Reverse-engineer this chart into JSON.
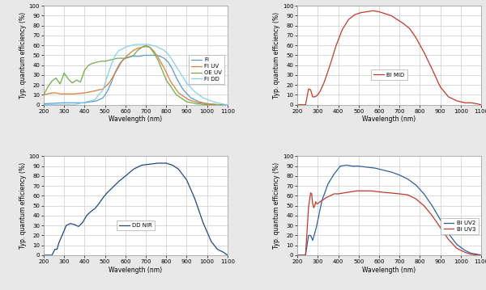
{
  "fig_bg_color": "#e8e8e8",
  "plot_bg_color": "#ffffff",
  "grid_color": "#cccccc",
  "xlim": [
    200,
    1100
  ],
  "ylim": [
    0,
    100
  ],
  "xticks": [
    200,
    300,
    400,
    500,
    600,
    700,
    800,
    900,
    1000,
    1100
  ],
  "yticks": [
    0,
    10,
    20,
    30,
    40,
    50,
    60,
    70,
    80,
    90,
    100
  ],
  "xlabel": "Wavelength (nm)",
  "ylabel": "Typ. quantum efficiency (%)",
  "FI": {
    "color": "#5b9bd5",
    "x": [
      200,
      300,
      350,
      400,
      430,
      460,
      490,
      510,
      530,
      550,
      570,
      590,
      610,
      630,
      650,
      670,
      690,
      710,
      730,
      750,
      770,
      790,
      810,
      830,
      850,
      880,
      920,
      960,
      1000,
      1050,
      1100
    ],
    "y": [
      1,
      2,
      2,
      2,
      3,
      4,
      7,
      13,
      22,
      33,
      41,
      46,
      48,
      49,
      49,
      49,
      50,
      50,
      50,
      50,
      49,
      47,
      43,
      36,
      27,
      16,
      7,
      3,
      1,
      0,
      0
    ]
  },
  "FI_UV": {
    "color": "#e07b39",
    "x": [
      200,
      220,
      240,
      260,
      280,
      300,
      350,
      400,
      450,
      490,
      520,
      550,
      580,
      610,
      640,
      660,
      680,
      700,
      720,
      740,
      760,
      790,
      820,
      860,
      910,
      960,
      1010,
      1060,
      1100
    ],
    "y": [
      10,
      11,
      12,
      12,
      11,
      11,
      11,
      12,
      14,
      16,
      22,
      32,
      43,
      50,
      55,
      57,
      58,
      59,
      58,
      54,
      48,
      37,
      24,
      12,
      5,
      2,
      1,
      0,
      0
    ]
  },
  "OE_UV": {
    "color": "#70ad47",
    "x": [
      200,
      220,
      240,
      260,
      280,
      300,
      320,
      340,
      360,
      380,
      400,
      420,
      440,
      460,
      480,
      500,
      520,
      540,
      560,
      580,
      600,
      620,
      640,
      660,
      680,
      700,
      720,
      740,
      760,
      800,
      850,
      900,
      950,
      1000,
      1050,
      1100
    ],
    "y": [
      10,
      18,
      24,
      27,
      21,
      32,
      26,
      22,
      25,
      23,
      35,
      40,
      42,
      43,
      44,
      44,
      45,
      46,
      47,
      47,
      47,
      48,
      50,
      55,
      58,
      60,
      58,
      52,
      45,
      25,
      10,
      3,
      1,
      0,
      0,
      0
    ]
  },
  "FI_DD": {
    "color": "#87CEEB",
    "x": [
      200,
      350,
      450,
      490,
      510,
      530,
      550,
      570,
      590,
      610,
      630,
      650,
      670,
      690,
      710,
      730,
      750,
      770,
      790,
      810,
      830,
      860,
      900,
      940,
      980,
      1030,
      1070,
      1100
    ],
    "y": [
      0,
      0,
      5,
      15,
      28,
      40,
      50,
      55,
      57,
      59,
      60,
      61,
      61,
      61,
      61,
      60,
      59,
      57,
      55,
      51,
      45,
      35,
      22,
      13,
      7,
      3,
      1,
      0
    ]
  },
  "BI_MID": {
    "color": "#c0392b",
    "x": [
      200,
      240,
      255,
      265,
      275,
      285,
      295,
      310,
      330,
      360,
      390,
      420,
      450,
      480,
      510,
      540,
      570,
      600,
      630,
      660,
      690,
      720,
      750,
      780,
      820,
      860,
      900,
      940,
      980,
      1020,
      1050,
      1080,
      1100
    ],
    "y": [
      0,
      0,
      16,
      15,
      8,
      8,
      9,
      13,
      22,
      40,
      60,
      76,
      86,
      91,
      93,
      94,
      95,
      94,
      92,
      90,
      86,
      82,
      77,
      68,
      53,
      36,
      18,
      8,
      4,
      2,
      2,
      1,
      0
    ]
  },
  "DD_NIR": {
    "color": "#1f497d",
    "x": [
      200,
      240,
      255,
      265,
      275,
      290,
      310,
      330,
      350,
      370,
      390,
      410,
      430,
      450,
      470,
      490,
      510,
      540,
      570,
      600,
      640,
      680,
      720,
      760,
      800,
      830,
      860,
      900,
      940,
      980,
      1020,
      1050,
      1080,
      1100
    ],
    "y": [
      0,
      0,
      6,
      6,
      13,
      20,
      30,
      32,
      31,
      29,
      33,
      40,
      44,
      47,
      52,
      58,
      63,
      69,
      75,
      80,
      87,
      91,
      92,
      93,
      93,
      91,
      87,
      76,
      57,
      33,
      14,
      6,
      3,
      0
    ]
  },
  "BI_UV2": {
    "color": "#2e5fa3",
    "x": [
      200,
      240,
      255,
      265,
      275,
      285,
      295,
      320,
      350,
      380,
      410,
      440,
      470,
      500,
      540,
      580,
      620,
      660,
      700,
      740,
      780,
      820,
      860,
      900,
      940,
      980,
      1020,
      1050,
      1080,
      1100
    ],
    "y": [
      0,
      0,
      20,
      20,
      15,
      22,
      30,
      55,
      72,
      82,
      90,
      91,
      90,
      90,
      89,
      88,
      86,
      84,
      81,
      77,
      71,
      62,
      50,
      36,
      22,
      11,
      5,
      2,
      1,
      0
    ]
  },
  "BI_UV3": {
    "color": "#c0392b",
    "x": [
      200,
      240,
      255,
      265,
      270,
      275,
      280,
      285,
      290,
      295,
      300,
      310,
      320,
      340,
      360,
      380,
      400,
      430,
      460,
      490,
      520,
      560,
      600,
      650,
      700,
      740,
      780,
      820,
      860,
      900,
      940,
      980,
      1020,
      1050,
      1080,
      1100
    ],
    "y": [
      0,
      0,
      49,
      63,
      62,
      52,
      48,
      50,
      54,
      52,
      52,
      54,
      55,
      58,
      60,
      62,
      62,
      63,
      64,
      65,
      65,
      65,
      64,
      63,
      62,
      61,
      57,
      50,
      40,
      28,
      16,
      7,
      3,
      1,
      0,
      0
    ]
  }
}
